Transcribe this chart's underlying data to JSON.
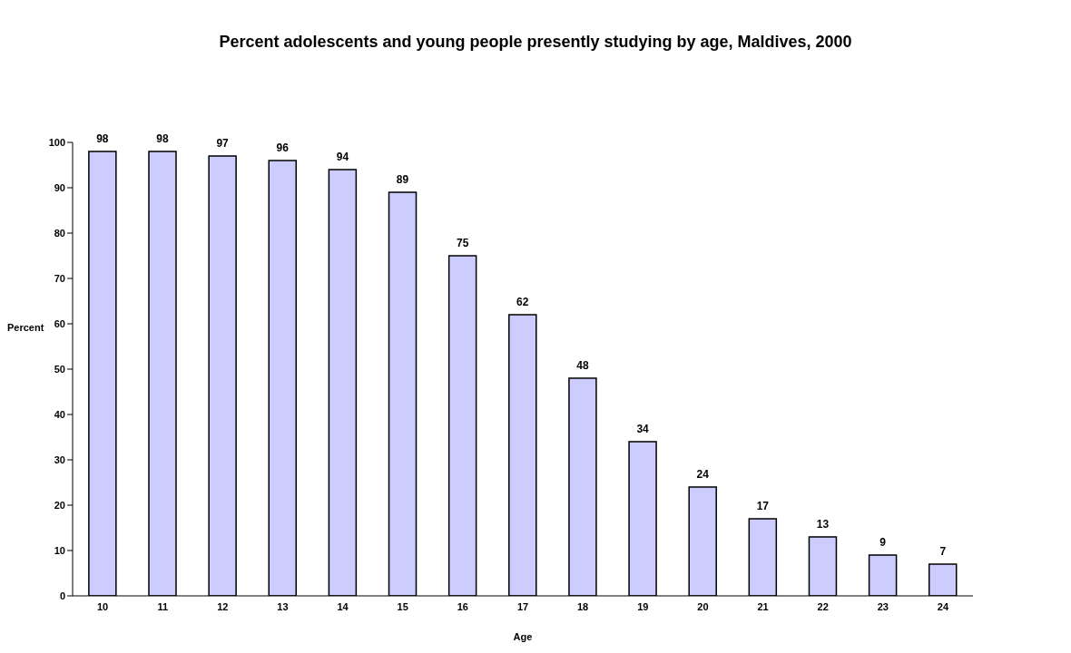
{
  "chart_data": {
    "type": "bar",
    "title": "Percent adolescents and young people presently studying by age, Maldives, 2000",
    "xlabel": "Age",
    "ylabel": "Percent",
    "categories": [
      "10",
      "11",
      "12",
      "13",
      "14",
      "15",
      "16",
      "17",
      "18",
      "19",
      "20",
      "21",
      "22",
      "23",
      "24"
    ],
    "values": [
      98,
      98,
      97,
      96,
      94,
      89,
      75,
      62,
      48,
      34,
      24,
      17,
      13,
      9,
      7
    ],
    "color": "#ccccff",
    "ylim": [
      0,
      100
    ],
    "yticks": [
      0,
      10,
      20,
      30,
      40,
      50,
      60,
      70,
      80,
      90,
      100
    ],
    "data_labels": true
  }
}
